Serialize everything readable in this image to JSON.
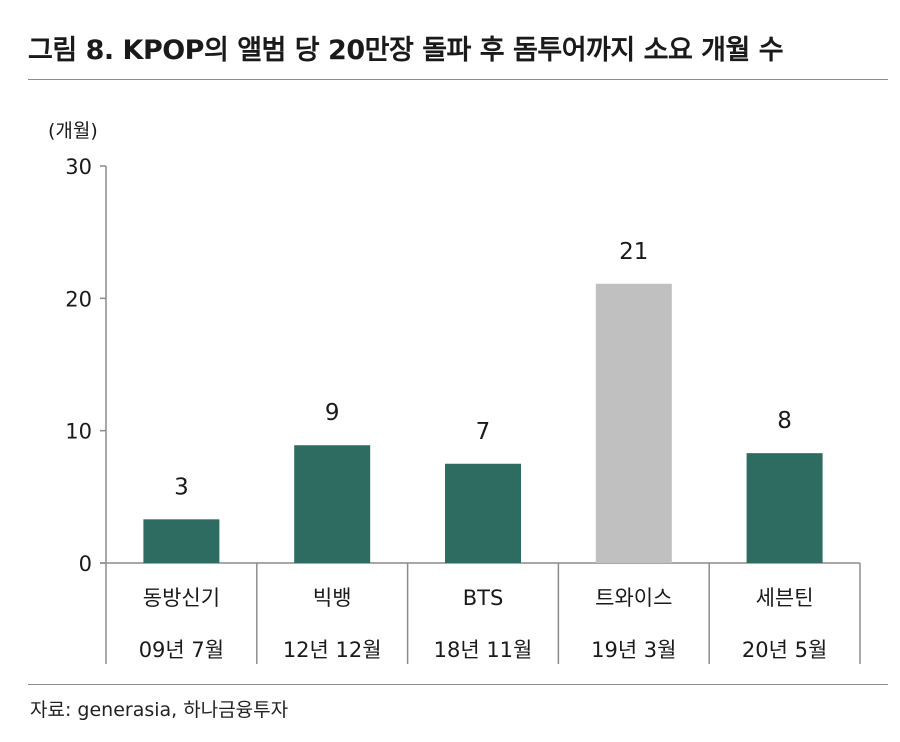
{
  "figure": {
    "title": "그림 8. KPOP의 앨범 당 20만장 돌파 후 돔투어까지 소요 개월 수",
    "source": "자료: generasia, 하나금융투자"
  },
  "chart_data": {
    "type": "bar",
    "unit_label": "(개월)",
    "categories": [
      {
        "name": "동방신기",
        "date": "09년 7월"
      },
      {
        "name": "빅뱅",
        "date": "12년 12월"
      },
      {
        "name": "BTS",
        "date": "18년 11월"
      },
      {
        "name": "트와이스",
        "date": "19년 3월"
      },
      {
        "name": "세븐틴",
        "date": "20년 5월"
      }
    ],
    "values": [
      3,
      9,
      7,
      21,
      8
    ],
    "bar_heights": [
      3.3,
      8.9,
      7.5,
      21.1,
      8.3
    ],
    "ylim": [
      0,
      30
    ],
    "yticks": [
      0,
      10,
      20,
      30
    ],
    "grid": false,
    "colors": {
      "default_bar": "#2e6b60",
      "highlight_bar": "#c0c0c0",
      "axis": "#8c8c8c",
      "text": "#1a1a1a"
    },
    "highlight_index": 3
  }
}
